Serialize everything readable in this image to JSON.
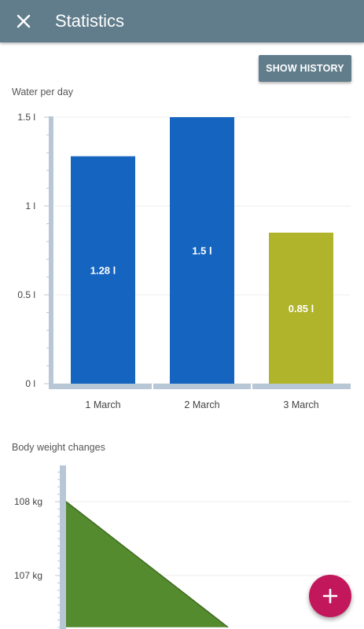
{
  "appbar": {
    "title": "Statistics",
    "close_icon": "close-icon"
  },
  "actions": {
    "show_history_label": "SHOW HISTORY"
  },
  "water_section": {
    "label": "Water per day"
  },
  "weight_section": {
    "label": "Body weight changes"
  },
  "fab": {
    "icon": "plus-icon",
    "color": "#c2185b"
  },
  "colors": {
    "appbar": "#617d8b",
    "bar_blue": "#1565c0",
    "bar_olive": "#afb42b",
    "area_green": "#558b2f",
    "axis": "#b8c7d6"
  },
  "chart_data": [
    {
      "type": "bar",
      "categories": [
        "1 March",
        "2 March",
        "3 March"
      ],
      "values": [
        1.28,
        1.5,
        0.85
      ],
      "value_labels": [
        "1.28 l",
        "1.5 l",
        "0.85 l"
      ],
      "bar_colors": [
        "#1565c0",
        "#1565c0",
        "#afb42b"
      ],
      "yticks": [
        {
          "value": 0,
          "label": "0 l"
        },
        {
          "value": 0.5,
          "label": "0.5 l"
        },
        {
          "value": 1,
          "label": "1 l"
        },
        {
          "value": 1.5,
          "label": "1.5 l"
        }
      ],
      "ylim": [
        0,
        1.5
      ],
      "grid": true
    },
    {
      "type": "area",
      "yticks": [
        {
          "value": 108,
          "label": "108 kg"
        },
        {
          "value": 107,
          "label": "107 kg"
        }
      ],
      "series": [
        {
          "values": [
            108,
            106.3
          ]
        }
      ],
      "color": "#558b2f",
      "grid": true
    }
  ]
}
